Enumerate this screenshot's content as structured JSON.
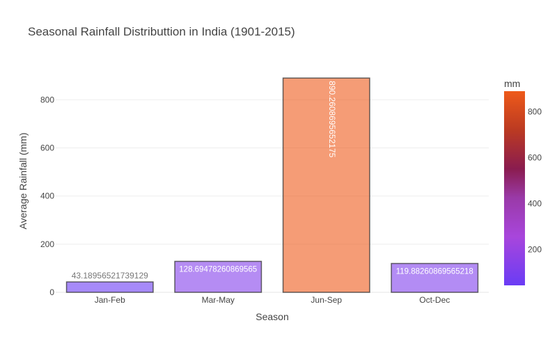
{
  "chart_data": {
    "type": "bar",
    "title": "Seasonal Rainfall Distributtion in India (1901-2015)",
    "xlabel": "Season",
    "ylabel": "Average Rainfall (mm)",
    "categories": [
      "Jan-Feb",
      "Mar-May",
      "Jun-Sep",
      "Oct-Dec"
    ],
    "values": [
      43.18956521739129,
      128.69478260869565,
      890.2608695652175,
      119.88260869565218
    ],
    "data_labels": [
      "43.18956521739129",
      "128.69478260869565",
      "890.2608695652175",
      "119.88260869565218"
    ],
    "ylim": [
      0,
      937
    ],
    "yticks": [
      0,
      200,
      400,
      600,
      800
    ],
    "grid": true,
    "colorbar": {
      "title": "mm",
      "range": [
        43.18956521739129,
        890.2608695652175
      ],
      "ticks": [
        200,
        400,
        600,
        800
      ],
      "colors": [
        "#6a3cf5",
        "#9b3fe6",
        "#b045d4",
        "#8a1c5b",
        "#a8301f",
        "#d9521c",
        "#ee5a1a"
      ]
    },
    "bar_opacity": 0.6,
    "bar_outline_color": "#333333"
  }
}
